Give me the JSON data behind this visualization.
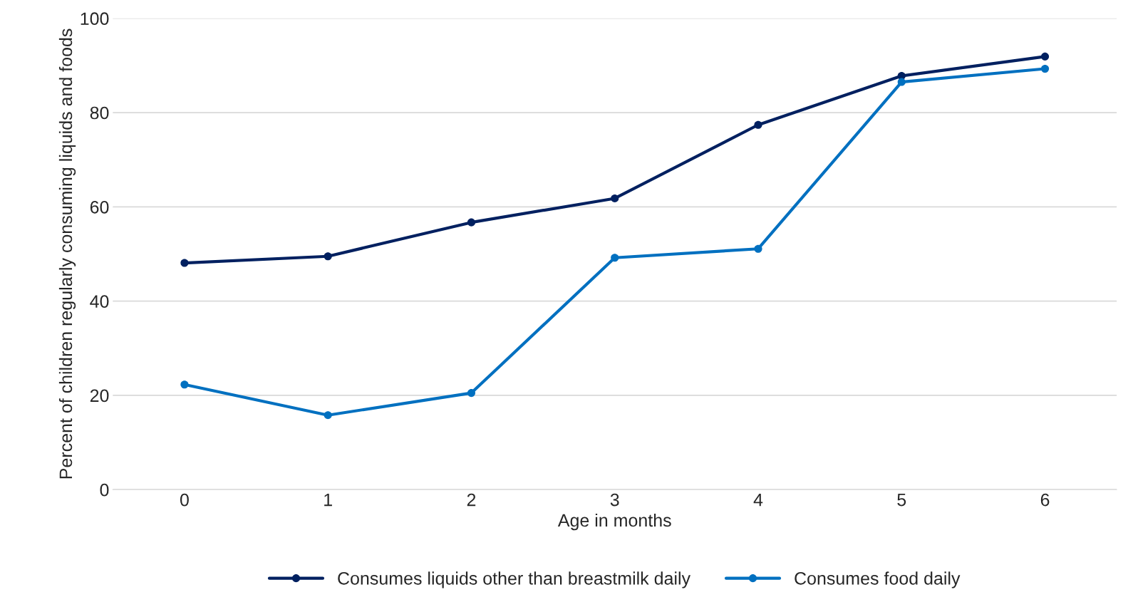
{
  "chart_data": {
    "type": "line",
    "xlabel": "Age in months",
    "ylabel": "Percent of children regularly consuming liquids and foods",
    "categories": [
      "0",
      "1",
      "2",
      "3",
      "4",
      "5",
      "6"
    ],
    "series": [
      {
        "name": "Consumes liquids other than breastmilk daily",
        "color": "#002060",
        "values": [
          48.1,
          49.5,
          56.7,
          61.8,
          77.4,
          87.8,
          91.9
        ]
      },
      {
        "name": "Consumes food daily",
        "color": "#0070c0",
        "values": [
          22.3,
          15.8,
          20.5,
          49.2,
          51.1,
          86.5,
          89.3
        ]
      }
    ],
    "ylim": [
      0,
      100
    ],
    "yticks": [
      0,
      20,
      40,
      60,
      80,
      100
    ],
    "grid": "y",
    "legend": "bottom",
    "marker": "circle",
    "line_style": "solid"
  }
}
